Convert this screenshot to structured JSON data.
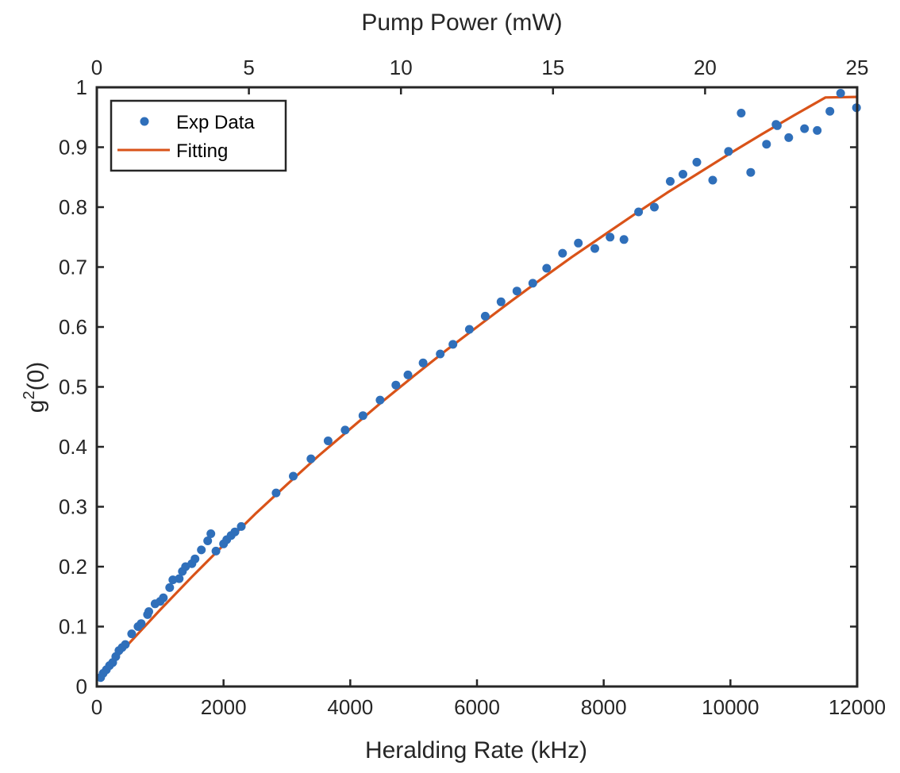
{
  "chart_data": {
    "type": "scatter",
    "top_axis_title": "Pump Power (mW)",
    "xlabel": "Heralding Rate (kHz)",
    "ylabel": "g",
    "ylabel_sup": "2",
    "ylabel_suffix": "(0)",
    "xlim": [
      0,
      12000
    ],
    "ylim": [
      0,
      1
    ],
    "top_xlim": [
      0,
      25
    ],
    "x_ticks": [
      "0",
      "2000",
      "4000",
      "6000",
      "8000",
      "10000",
      "12000"
    ],
    "x_tick_values": [
      0,
      2000,
      4000,
      6000,
      8000,
      10000,
      12000
    ],
    "top_ticks": [
      "0",
      "5",
      "10",
      "15",
      "20",
      "25"
    ],
    "top_tick_values": [
      0,
      5,
      10,
      15,
      20,
      25
    ],
    "y_ticks": [
      "0",
      "0.1",
      "0.2",
      "0.3",
      "0.4",
      "0.5",
      "0.6",
      "0.7",
      "0.8",
      "0.9",
      "1"
    ],
    "y_tick_values": [
      0,
      0.1,
      0.2,
      0.3,
      0.4,
      0.5,
      0.6,
      0.7,
      0.8,
      0.9,
      1
    ],
    "legend": {
      "position": "top-left",
      "entries": [
        "Exp Data",
        "Fitting"
      ]
    },
    "series": [
      {
        "name": "Exp Data",
        "kind": "scatter",
        "color": "#2f6fba",
        "x": [
          60,
          100,
          150,
          200,
          250,
          300,
          350,
          400,
          450,
          550,
          650,
          700,
          800,
          820,
          920,
          1000,
          1050,
          1150,
          1200,
          1300,
          1350,
          1400,
          1500,
          1550,
          1650,
          1750,
          1800,
          1880,
          2000,
          2050,
          2120,
          2180,
          2280,
          2830,
          3100,
          3380,
          3650,
          3920,
          4200,
          4470,
          4720,
          4910,
          5150,
          5420,
          5620,
          5880,
          6130,
          6380,
          6630,
          6880,
          7100,
          7350,
          7600,
          7860,
          8100,
          8320,
          8550,
          8800,
          9050,
          9250,
          9470,
          9720,
          9970,
          10170,
          10320,
          10570,
          10720,
          10740,
          10920,
          11170,
          11370,
          11570,
          11740,
          11990
        ],
        "y": [
          0.015,
          0.022,
          0.028,
          0.035,
          0.04,
          0.05,
          0.06,
          0.065,
          0.07,
          0.088,
          0.1,
          0.105,
          0.12,
          0.125,
          0.138,
          0.142,
          0.148,
          0.165,
          0.178,
          0.18,
          0.192,
          0.2,
          0.205,
          0.213,
          0.228,
          0.243,
          0.255,
          0.226,
          0.238,
          0.245,
          0.252,
          0.258,
          0.267,
          0.323,
          0.351,
          0.38,
          0.41,
          0.428,
          0.452,
          0.478,
          0.503,
          0.52,
          0.54,
          0.555,
          0.571,
          0.596,
          0.618,
          0.642,
          0.66,
          0.673,
          0.698,
          0.723,
          0.74,
          0.731,
          0.75,
          0.746,
          0.792,
          0.8,
          0.843,
          0.855,
          0.875,
          0.845,
          0.893,
          0.957,
          0.858,
          0.905,
          0.938,
          0.936,
          0.916,
          0.931,
          0.928,
          0.96,
          0.99,
          0.966
        ]
      },
      {
        "name": "Fitting",
        "kind": "line",
        "color": "#d95319",
        "x": [
          0,
          500,
          1000,
          1500,
          2000,
          2500,
          3000,
          3500,
          4000,
          4500,
          5000,
          5500,
          6000,
          6500,
          7000,
          7500,
          8000,
          8500,
          9000,
          9500,
          10000,
          10500,
          11000,
          11500,
          12000
        ],
        "y": [
          0.012,
          0.071,
          0.128,
          0.183,
          0.236,
          0.288,
          0.337,
          0.385,
          0.43,
          0.475,
          0.518,
          0.56,
          0.6,
          0.64,
          0.679,
          0.717,
          0.753,
          0.789,
          0.824,
          0.857,
          0.89,
          0.922,
          0.953,
          0.983,
          0.984
        ]
      }
    ]
  }
}
